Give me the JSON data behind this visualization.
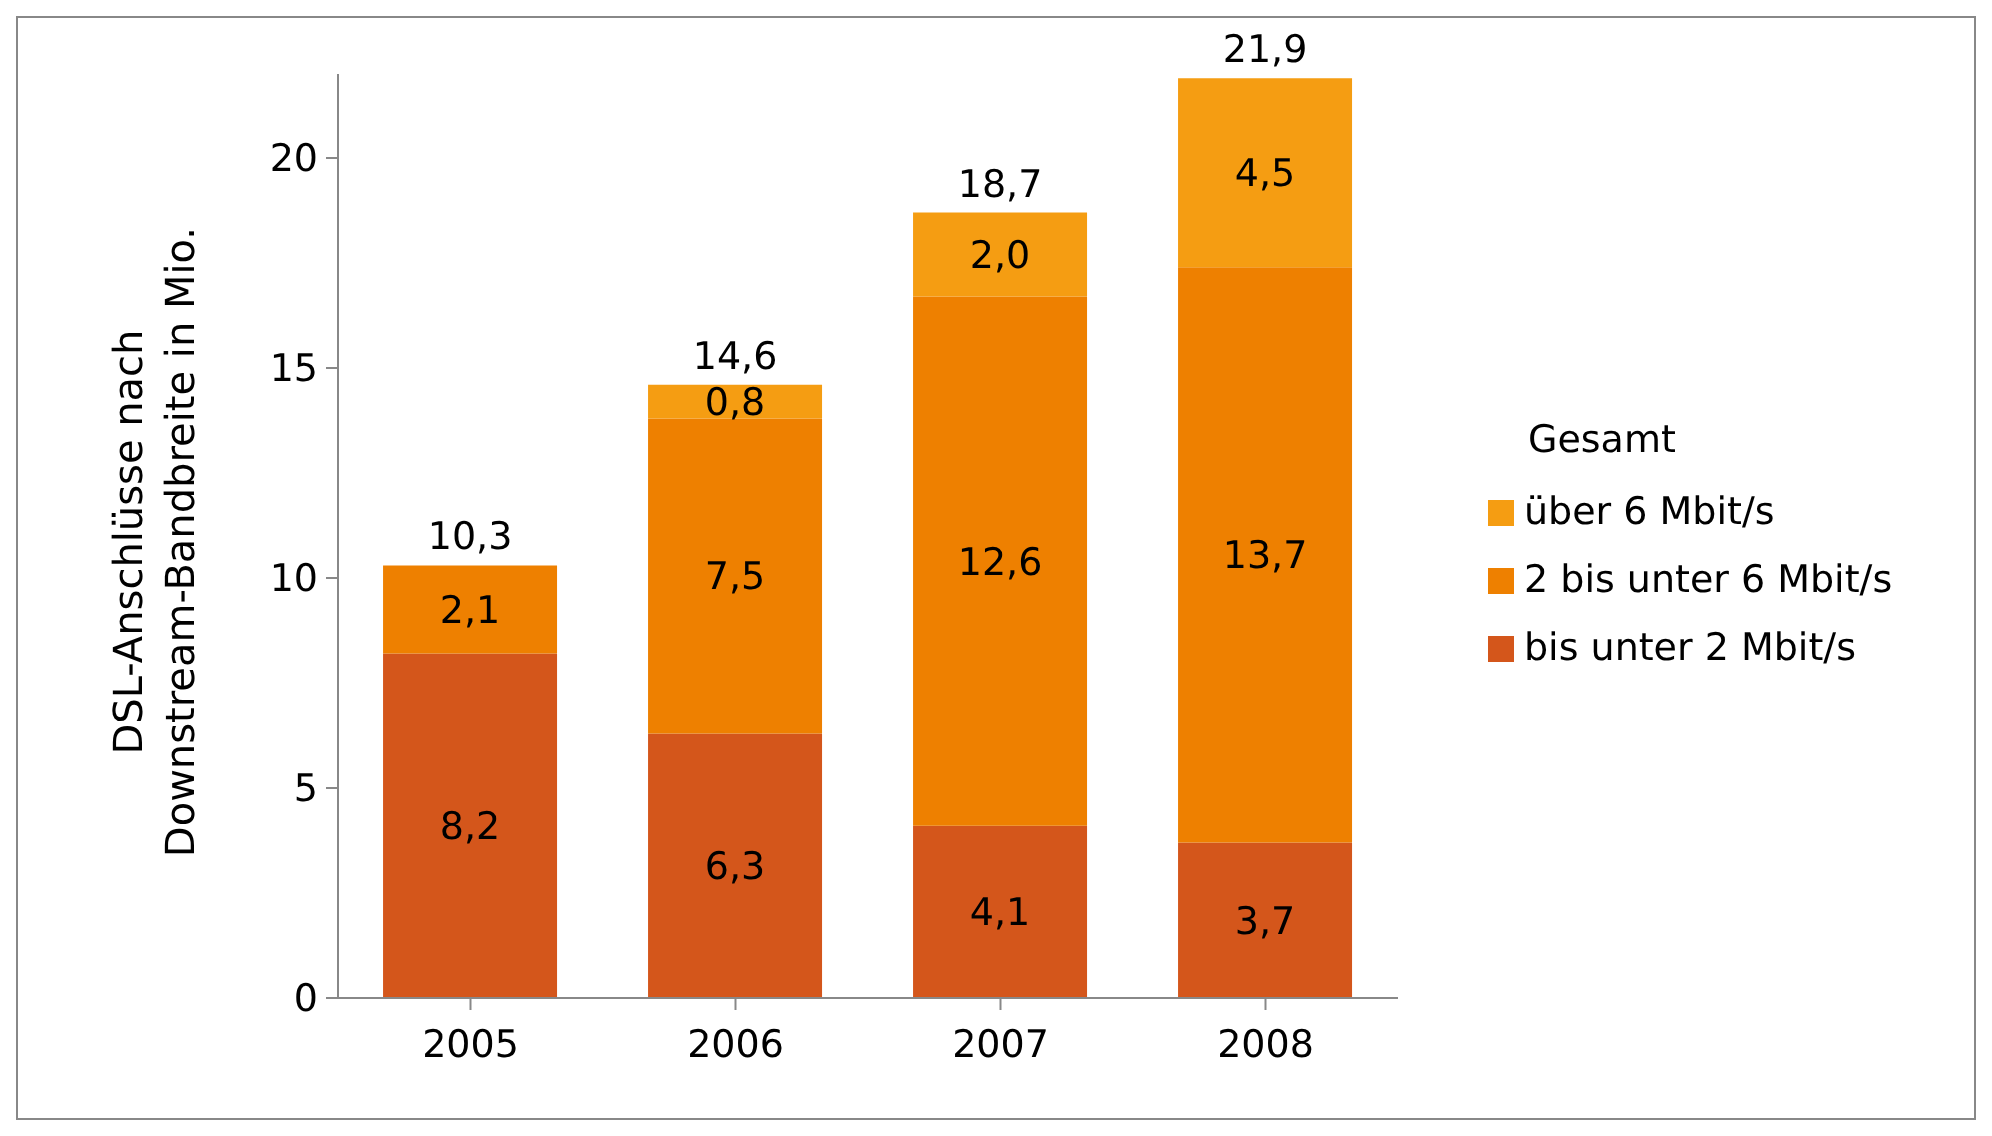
{
  "chart_data": {
    "type": "bar",
    "stacked": true,
    "ylabel": "DSL-Anschlüsse nach Downstream-Bandbreite in Mio.",
    "legend_title": "Gesamt",
    "legend": "right",
    "grid": false,
    "categories": [
      "2005",
      "2006",
      "2007",
      "2008"
    ],
    "ylim": [
      0,
      22
    ],
    "yticks": [
      0,
      5,
      10,
      15,
      20
    ],
    "series": [
      {
        "name": "bis unter 2 Mbit/s",
        "color": "#d4561b",
        "values": [
          8.2,
          6.3,
          4.1,
          3.7
        ],
        "value_labels": [
          "8,2",
          "6,3",
          "4,1",
          "3,7"
        ]
      },
      {
        "name": "2 bis unter 6 Mbit/s",
        "color": "#ee8000",
        "values": [
          2.1,
          7.5,
          12.6,
          13.7
        ],
        "value_labels": [
          "2,1",
          "7,5",
          "12,6",
          "13,7"
        ]
      },
      {
        "name": "über 6 Mbit/s",
        "color": "#f59d12",
        "values": [
          null,
          0.8,
          2.0,
          4.5
        ],
        "value_labels": [
          null,
          "0,8",
          "2,0",
          "4,5"
        ]
      }
    ],
    "totals": [
      "10,3",
      "14,6",
      "18,7",
      "21,9"
    ]
  }
}
